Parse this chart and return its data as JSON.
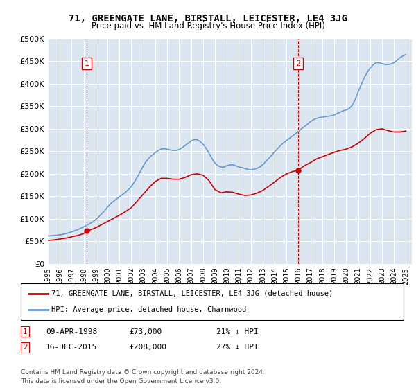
{
  "title": "71, GREENGATE LANE, BIRSTALL, LEICESTER, LE4 3JG",
  "subtitle": "Price paid vs. HM Land Registry's House Price Index (HPI)",
  "ylabel_ticks": [
    "£0",
    "£50K",
    "£100K",
    "£150K",
    "£200K",
    "£250K",
    "£300K",
    "£350K",
    "£400K",
    "£450K",
    "£500K"
  ],
  "ytick_values": [
    0,
    50000,
    100000,
    150000,
    200000,
    250000,
    300000,
    350000,
    400000,
    450000,
    500000
  ],
  "ylim": [
    0,
    500000
  ],
  "xlim_start": 1995.0,
  "xlim_end": 2025.5,
  "sale1_year": 1998.27,
  "sale1_price": 73000,
  "sale1_label": "1",
  "sale1_date": "09-APR-1998",
  "sale1_hpi_text": "21% ↓ HPI",
  "sale2_year": 2015.96,
  "sale2_price": 208000,
  "sale2_label": "2",
  "sale2_date": "16-DEC-2015",
  "sale2_hpi_text": "27% ↓ HPI",
  "red_line_color": "#cc0000",
  "blue_line_color": "#6699cc",
  "marker_box_color": "#cc0000",
  "dashed_line_color": "#cc0000",
  "legend_line1": "71, GREENGATE LANE, BIRSTALL, LEICESTER, LE4 3JG (detached house)",
  "legend_line2": "HPI: Average price, detached house, Charnwood",
  "footer1": "Contains HM Land Registry data © Crown copyright and database right 2024.",
  "footer2": "This data is licensed under the Open Government Licence v3.0.",
  "background_color": "#dce6f1",
  "plot_bg_color": "#dce6f1",
  "hpi_years": [
    1995.0,
    1995.25,
    1995.5,
    1995.75,
    1996.0,
    1996.25,
    1996.5,
    1996.75,
    1997.0,
    1997.25,
    1997.5,
    1997.75,
    1998.0,
    1998.25,
    1998.5,
    1998.75,
    1999.0,
    1999.25,
    1999.5,
    1999.75,
    2000.0,
    2000.25,
    2000.5,
    2000.75,
    2001.0,
    2001.25,
    2001.5,
    2001.75,
    2002.0,
    2002.25,
    2002.5,
    2002.75,
    2003.0,
    2003.25,
    2003.5,
    2003.75,
    2004.0,
    2004.25,
    2004.5,
    2004.75,
    2005.0,
    2005.25,
    2005.5,
    2005.75,
    2006.0,
    2006.25,
    2006.5,
    2006.75,
    2007.0,
    2007.25,
    2007.5,
    2007.75,
    2008.0,
    2008.25,
    2008.5,
    2008.75,
    2009.0,
    2009.25,
    2009.5,
    2009.75,
    2010.0,
    2010.25,
    2010.5,
    2010.75,
    2011.0,
    2011.25,
    2011.5,
    2011.75,
    2012.0,
    2012.25,
    2012.5,
    2012.75,
    2013.0,
    2013.25,
    2013.5,
    2013.75,
    2014.0,
    2014.25,
    2014.5,
    2014.75,
    2015.0,
    2015.25,
    2015.5,
    2015.75,
    2016.0,
    2016.25,
    2016.5,
    2016.75,
    2017.0,
    2017.25,
    2017.5,
    2017.75,
    2018.0,
    2018.25,
    2018.5,
    2018.75,
    2019.0,
    2019.25,
    2019.5,
    2019.75,
    2020.0,
    2020.25,
    2020.5,
    2020.75,
    2021.0,
    2021.25,
    2021.5,
    2021.75,
    2022.0,
    2022.25,
    2022.5,
    2022.75,
    2023.0,
    2023.25,
    2023.5,
    2023.75,
    2024.0,
    2024.25,
    2024.5,
    2024.75,
    2025.0
  ],
  "hpi_values": [
    62000,
    62500,
    63000,
    63500,
    64500,
    65500,
    67000,
    69000,
    71000,
    73500,
    76000,
    79000,
    82000,
    85500,
    89000,
    93000,
    98000,
    104000,
    111000,
    118000,
    126000,
    133000,
    139000,
    144000,
    149000,
    154000,
    159000,
    165000,
    172000,
    182000,
    193000,
    205000,
    218000,
    228000,
    236000,
    242000,
    247000,
    252000,
    255000,
    256000,
    255000,
    253000,
    252000,
    252000,
    254000,
    258000,
    263000,
    268000,
    273000,
    276000,
    276000,
    272000,
    266000,
    257000,
    246000,
    234000,
    224000,
    218000,
    215000,
    215000,
    218000,
    220000,
    220000,
    218000,
    215000,
    214000,
    212000,
    210000,
    209000,
    210000,
    212000,
    215000,
    220000,
    227000,
    234000,
    241000,
    249000,
    256000,
    263000,
    269000,
    274000,
    279000,
    284000,
    289000,
    294000,
    300000,
    305000,
    310000,
    316000,
    320000,
    323000,
    325000,
    326000,
    327000,
    328000,
    329000,
    331000,
    334000,
    337000,
    340000,
    342000,
    345000,
    352000,
    365000,
    382000,
    398000,
    413000,
    425000,
    435000,
    442000,
    447000,
    447000,
    445000,
    443000,
    443000,
    444000,
    447000,
    452000,
    458000,
    462000,
    465000
  ],
  "red_years": [
    1995.0,
    1995.5,
    1996.0,
    1996.5,
    1997.0,
    1997.5,
    1998.0,
    1998.27,
    1998.5,
    1999.0,
    1999.5,
    2000.0,
    2000.5,
    2001.0,
    2001.5,
    2002.0,
    2002.5,
    2003.0,
    2003.5,
    2004.0,
    2004.5,
    2005.0,
    2005.5,
    2006.0,
    2006.5,
    2007.0,
    2007.5,
    2008.0,
    2008.5,
    2009.0,
    2009.5,
    2010.0,
    2010.5,
    2011.0,
    2011.5,
    2012.0,
    2012.5,
    2013.0,
    2013.5,
    2014.0,
    2014.5,
    2015.0,
    2015.5,
    2015.96,
    2016.5,
    2017.0,
    2017.5,
    2018.0,
    2018.5,
    2019.0,
    2019.5,
    2020.0,
    2020.5,
    2021.0,
    2021.5,
    2022.0,
    2022.5,
    2023.0,
    2023.5,
    2024.0,
    2024.5,
    2025.0
  ],
  "red_values": [
    52000,
    53000,
    55000,
    57000,
    60000,
    63000,
    67000,
    73000,
    75000,
    80000,
    87000,
    94000,
    101000,
    108000,
    116000,
    125000,
    140000,
    155000,
    170000,
    183000,
    190000,
    190000,
    188000,
    188000,
    192000,
    198000,
    200000,
    197000,
    185000,
    165000,
    158000,
    160000,
    159000,
    155000,
    152000,
    153000,
    157000,
    163000,
    172000,
    182000,
    192000,
    200000,
    205000,
    208000,
    218000,
    225000,
    233000,
    238000,
    243000,
    248000,
    252000,
    255000,
    260000,
    268000,
    278000,
    290000,
    298000,
    300000,
    296000,
    293000,
    293000,
    295000
  ]
}
